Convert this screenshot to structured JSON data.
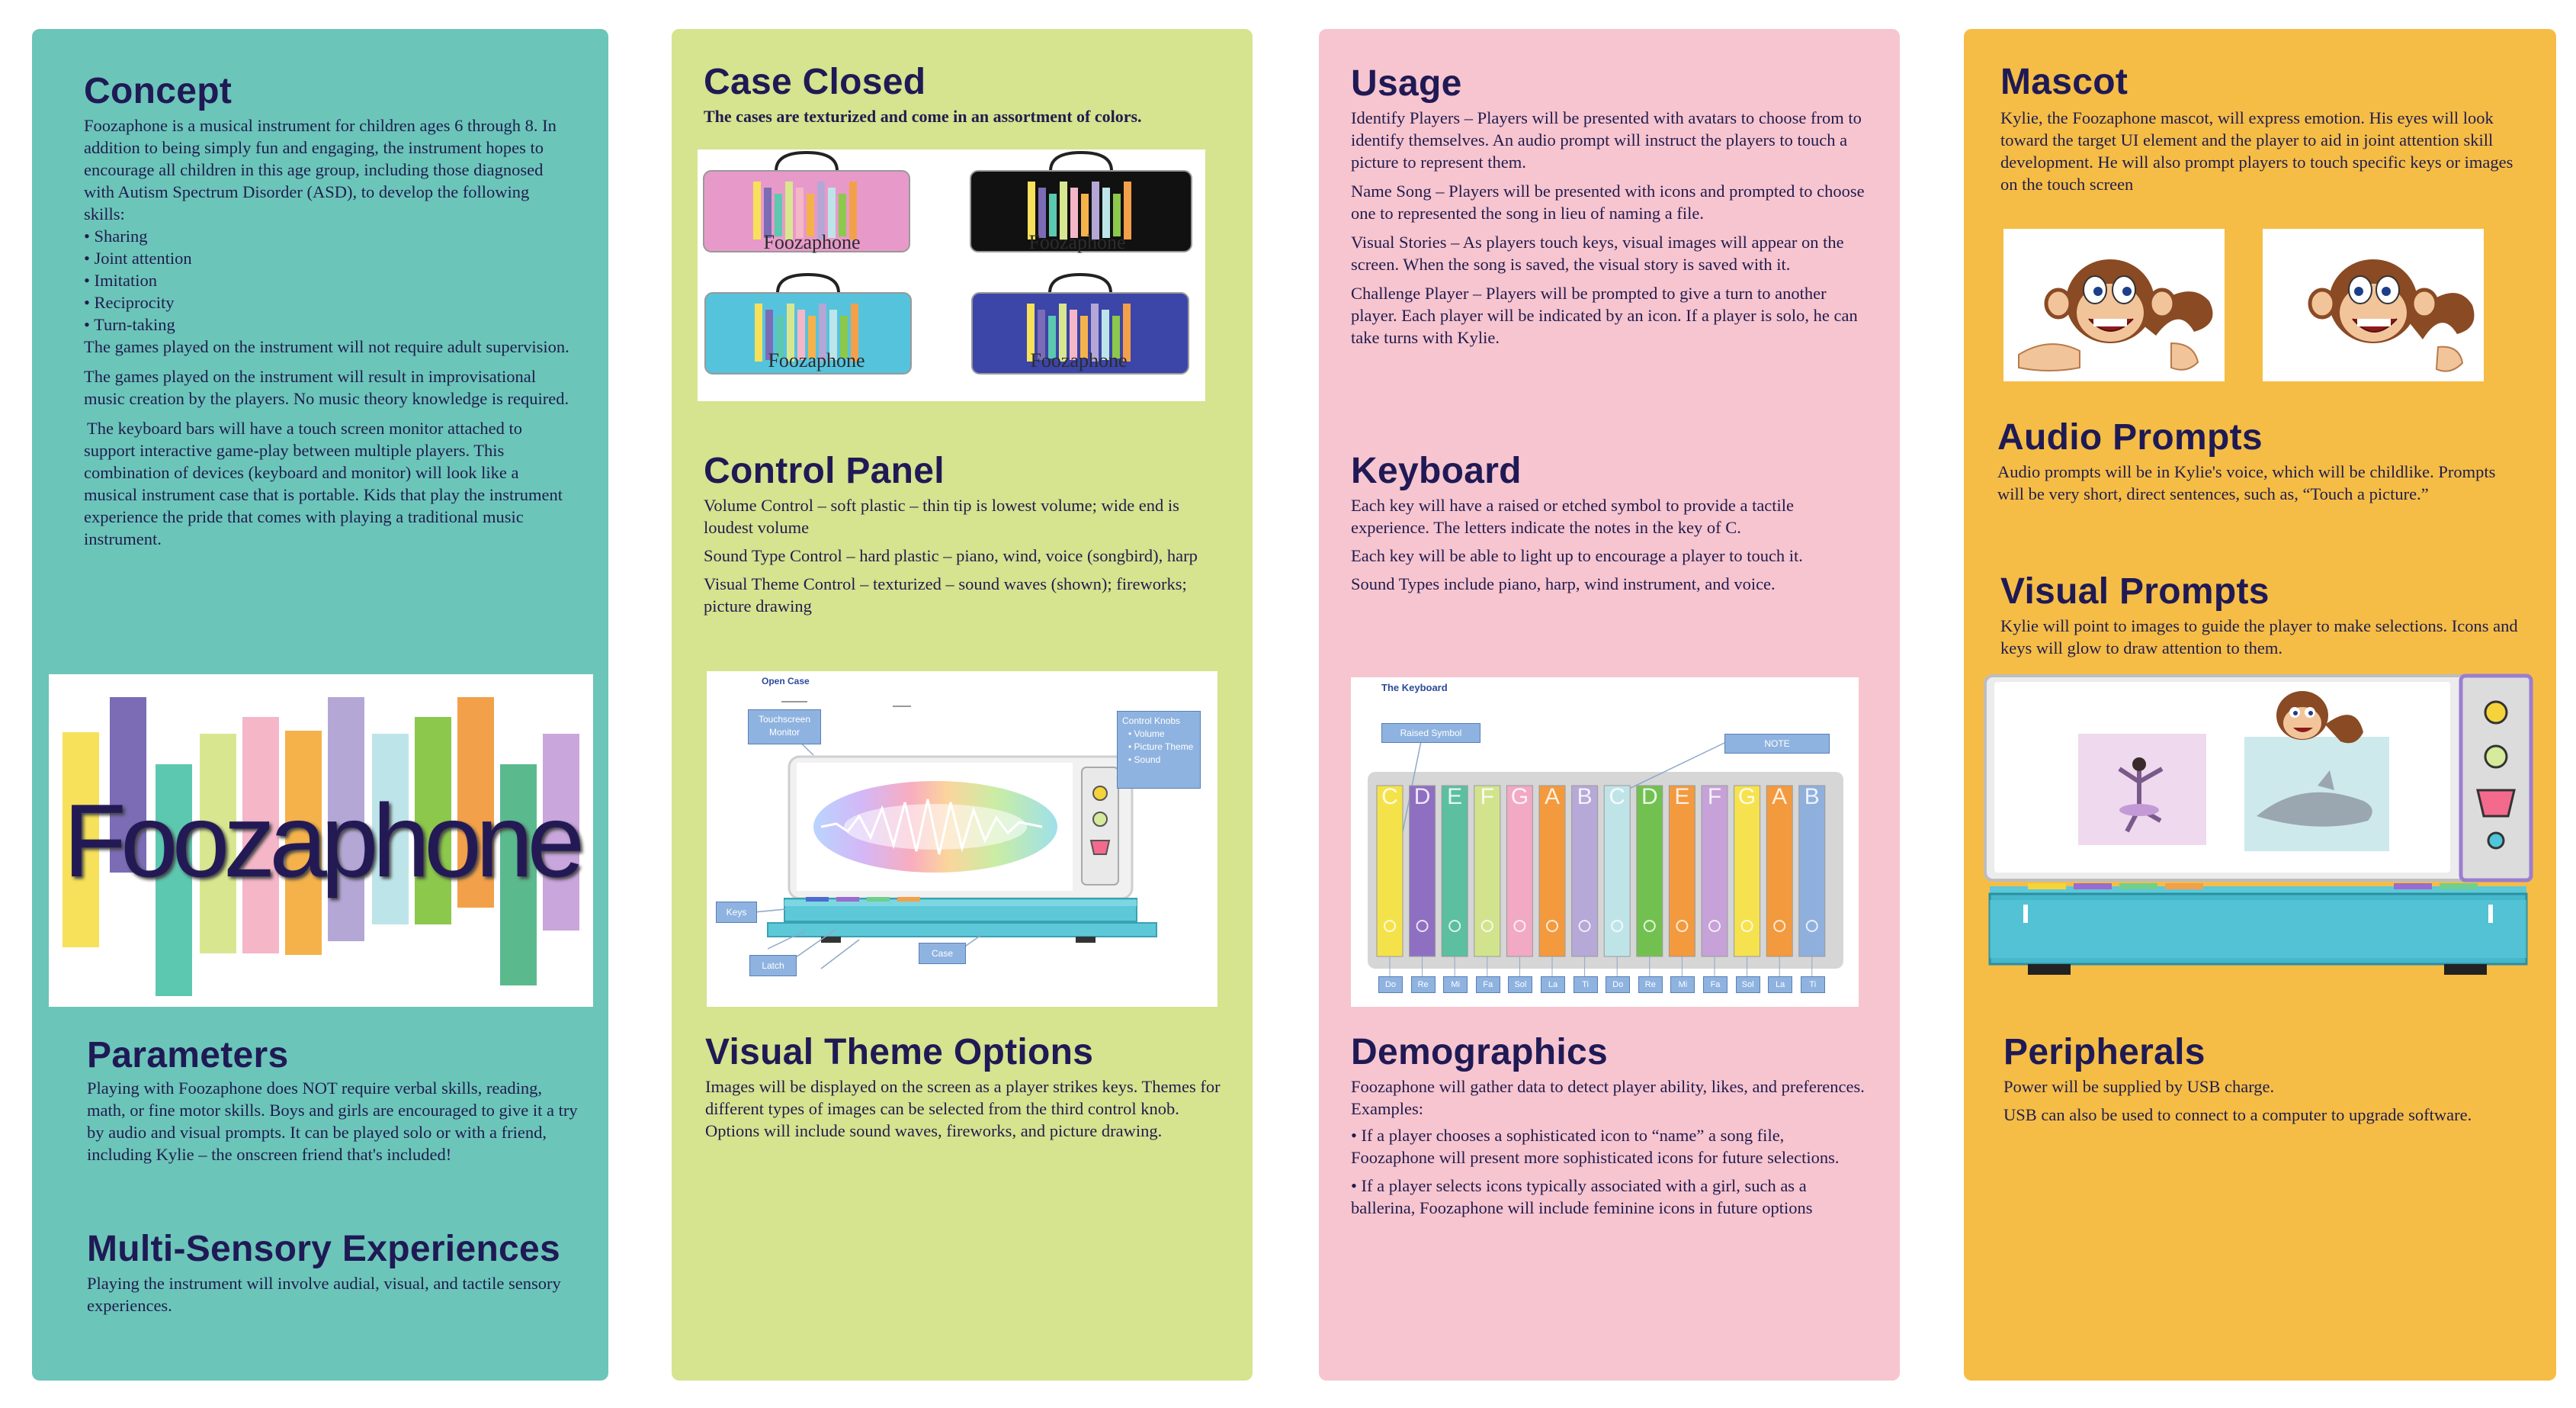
{
  "concept": {
    "heading": "Concept",
    "p1": "Foozaphone is a musical instrument for children ages 6 through 8. In addition to being simply fun and engaging, the instrument hopes to encourage all children in this age group, including those diagnosed with Autism Spectrum Disorder (ASD), to develop the following skills:",
    "skills": [
      "• Sharing",
      "• Joint attention",
      "• Imitation",
      "• Reciprocity",
      "• Turn-taking"
    ],
    "p2": "The games played on the instrument will not require adult supervision.",
    "p3": "The games played on the instrument will result in improvisational music creation by the players. No music theory knowledge is required.",
    "p4": "The keyboard bars will have a touch screen monitor attached to support interactive game-play between multiple players. This combination of devices (keyboard and monitor) will look like a musical instrument case that is portable. Kids that play the instrument experience the pride that comes with playing a traditional music instrument."
  },
  "logo": {
    "text": "Foozaphone"
  },
  "parameters": {
    "heading": "Parameters",
    "text": "Playing with Foozaphone does NOT require verbal skills, reading, math, or fine motor skills. Boys and girls are encouraged to give it a try by audio and visual prompts. It can be played solo or with a friend, including Kylie – the onscreen friend that's included!"
  },
  "multisensory": {
    "heading": "Multi-Sensory Experiences",
    "text": "Playing the instrument will involve audial, visual, and tactile sensory experiences."
  },
  "case_closed": {
    "heading": "Case Closed",
    "subtitle": "The cases are texturized and come in an assortment of colors.",
    "case_label": "Foozaphone"
  },
  "control_panel": {
    "heading": "Control Panel",
    "items": [
      "Volume Control – soft plastic – thin tip is lowest volume; wide end is loudest volume",
      "Sound Type Control – hard plastic – piano, wind, voice (songbird), harp",
      "Visual Theme Control – texturized – sound waves (shown); fireworks; picture drawing"
    ]
  },
  "open_case": {
    "title": "Open Case",
    "touchscreen": "Touchscreen Monitor",
    "knobs_title": "Control Knobs",
    "knobs": [
      "Volume",
      "Picture Theme",
      "Sound"
    ],
    "keys": "Keys",
    "latch": "Latch",
    "case": "Case"
  },
  "visual_theme": {
    "heading": "Visual Theme Options",
    "text": "Images will be displayed on the screen as a player strikes keys. Themes for different types of images can be selected from the third control knob. Options will include sound waves, fireworks, and picture drawing."
  },
  "usage": {
    "heading": "Usage",
    "items": [
      "Identify Players – Players will be presented with avatars to choose from to identify themselves. An audio prompt will instruct the players to touch a picture to represent them.",
      "Name Song – Players will be presented with icons and prompted to choose one to represented the song in lieu of naming a file.",
      "Visual Stories – As players touch keys, visual images will appear on the screen. When the song is saved, the visual story is saved with it.",
      "Challenge Player – Players will be prompted to give a turn to another player. Each player will be indicated by an icon. If a player is solo, he can take turns with Kylie."
    ]
  },
  "keyboard": {
    "heading": "Keyboard",
    "items": [
      "Each key will have a raised or etched symbol to provide a tactile experience. The letters indicate the notes in the key of C.",
      "Each key will be able to light up to encourage a player to touch it.",
      "Sound Types include piano, harp, wind instrument, and voice."
    ]
  },
  "keyboard_diagram": {
    "title": "The Keyboard",
    "raised_symbol": "Raised Symbol",
    "note": "NOTE",
    "notes": [
      "C",
      "D",
      "E",
      "F",
      "G",
      "A",
      "B",
      "C",
      "D",
      "E",
      "F",
      "G",
      "A",
      "B"
    ],
    "solfege": [
      "Do",
      "Re",
      "Mi",
      "Fa",
      "Sol",
      "La",
      "Ti",
      "Do",
      "Re",
      "Mi",
      "Fa",
      "Sol",
      "La",
      "Ti"
    ]
  },
  "demographics": {
    "heading": "Demographics",
    "intro": "Foozaphone will gather data to detect player ability, likes, and preferences. Examples:",
    "items": [
      "• If a player chooses a sophisticated icon to “name” a song file, Foozaphone will present more sophisticated icons for future selections.",
      "• If a player selects icons typically associated with a girl, such as a ballerina, Foozaphone will include feminine icons in future options"
    ]
  },
  "mascot": {
    "heading": "Mascot",
    "text": "Kylie, the Foozaphone mascot, will express emotion. His eyes will look toward the target UI element and the player to aid in joint attention skill development. He will also prompt players to touch specific keys or images on the touch screen"
  },
  "audio_prompts": {
    "heading": "Audio Prompts",
    "text": "Audio prompts will be in Kylie's voice, which will be childlike. Prompts will be very short, direct sentences, such as, “Touch a picture.”"
  },
  "visual_prompts": {
    "heading": "Visual Prompts",
    "text": "Kylie will point to images to guide the player to make selections. Icons and keys will glow to draw attention to them."
  },
  "peripherals": {
    "heading": "Peripherals",
    "items": [
      "Power will be supplied by USB charge.",
      "USB can also be used to connect to a computer to upgrade software."
    ]
  },
  "colors": {
    "teal": "#6cc5b9",
    "lime": "#d6e38f",
    "pink": "#f7c5cf",
    "gold": "#f5bd46",
    "navy": "#1f1a55"
  }
}
